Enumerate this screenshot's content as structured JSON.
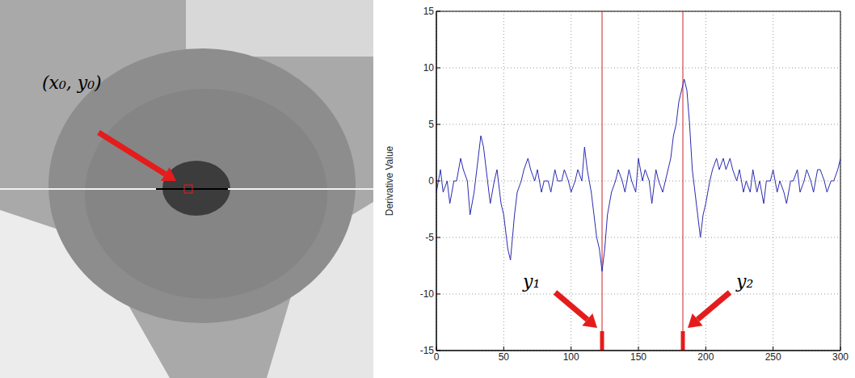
{
  "chart_data": {
    "type": "line",
    "y_label": "Derivative Value",
    "color": "#2b2bb0",
    "grid": true,
    "xlim": [
      0,
      300
    ],
    "xticks": [
      0,
      50,
      100,
      150,
      200,
      250,
      300
    ],
    "ylim": [
      -15,
      15
    ],
    "yticks": [
      -15,
      -10,
      -5,
      0,
      5,
      10,
      15
    ],
    "x": [
      0,
      3,
      5,
      8,
      10,
      13,
      15,
      18,
      20,
      23,
      25,
      28,
      30,
      33,
      35,
      38,
      40,
      43,
      45,
      48,
      50,
      53,
      55,
      58,
      60,
      63,
      65,
      68,
      70,
      73,
      75,
      78,
      80,
      83,
      85,
      88,
      90,
      93,
      95,
      98,
      100,
      103,
      105,
      108,
      110,
      112,
      115,
      117,
      119,
      121,
      123,
      125,
      127,
      130,
      133,
      135,
      138,
      140,
      143,
      145,
      148,
      150,
      153,
      155,
      158,
      160,
      163,
      165,
      168,
      170,
      172,
      174,
      176,
      178,
      180,
      182,
      184,
      186,
      188,
      190,
      192,
      194,
      196,
      198,
      200,
      203,
      205,
      208,
      210,
      213,
      215,
      218,
      220,
      223,
      225,
      228,
      230,
      233,
      235,
      238,
      240,
      243,
      245,
      248,
      250,
      253,
      255,
      258,
      260,
      263,
      265,
      268,
      270,
      273,
      275,
      278,
      280,
      283,
      285,
      288,
      290,
      293,
      295,
      298,
      300
    ],
    "values": [
      -1,
      1,
      -1,
      0,
      -2,
      0,
      0,
      2,
      1,
      0,
      -3,
      -1,
      1,
      4,
      3,
      0,
      -2,
      0,
      1,
      -2,
      -3,
      -6,
      -7,
      -3,
      -1,
      0,
      1,
      2,
      1,
      0,
      1,
      -1,
      0,
      0,
      -1,
      1,
      0,
      0,
      1,
      0,
      -1,
      0,
      1,
      0,
      3,
      1,
      -1,
      -3,
      -5,
      -6,
      -8,
      -6,
      -3,
      -1,
      0,
      1,
      0,
      -1,
      1,
      0,
      -1,
      2,
      0,
      1,
      0,
      -2,
      1,
      0,
      -1,
      0,
      1,
      2,
      4,
      5,
      7,
      8,
      9,
      8,
      5,
      1,
      -1,
      -3,
      -5,
      -3,
      -2,
      0,
      1,
      2,
      1,
      2,
      1,
      2,
      1,
      0,
      1,
      -1,
      0,
      -1,
      1,
      -1,
      0,
      -2,
      0,
      0,
      1,
      -1,
      0,
      -1,
      -2,
      0,
      0,
      1,
      -1,
      0,
      1,
      0,
      -1,
      1,
      1,
      0,
      -1,
      0,
      0,
      1,
      2
    ],
    "annotations": [
      {
        "x": 123,
        "label": "y₁",
        "color": "#cc2222"
      },
      {
        "x": 183,
        "label": "y₂",
        "color": "#cc2222"
      }
    ]
  },
  "image": {
    "annotation": "(x₀, y₀)"
  }
}
